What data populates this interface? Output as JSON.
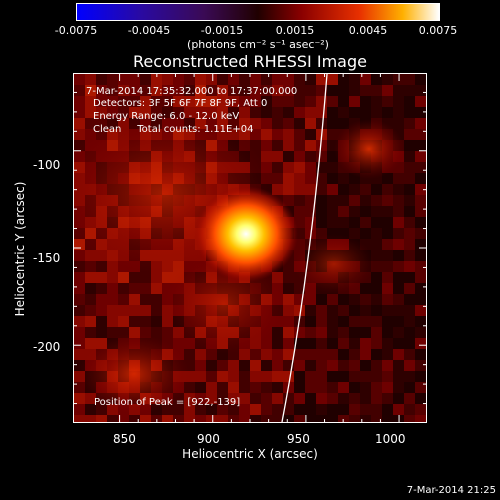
{
  "title": "Reconstructed RHESSI Image",
  "colorbar": {
    "ticks": [
      "-0.0075",
      "-0.0045",
      "-0.0015",
      "0.0015",
      "0.0045",
      "0.0075"
    ],
    "units": "(photons cm⁻² s⁻¹ asec⁻²)",
    "range": [
      -0.0075,
      0.0075
    ]
  },
  "annotations": {
    "time_range": "7-Mar-2014 17:35:32.000 to 17:37:00.000",
    "detectors": "Detectors: 3F 5F 6F 7F 8F 9F, Att 0",
    "energy_range": "Energy Range: 6.0 - 12.0 keV",
    "method_counts": "Clean     Total counts: 1.11E+04",
    "peak_position": "Position of Peak = [922,-139]"
  },
  "footer": "7-Mar-2014 21:25",
  "chart_data": {
    "type": "heatmap",
    "xlabel": "Heliocentric X (arcsec)",
    "ylabel": "Heliocentric Y (arcsec)",
    "xlim": [
      825,
      1015
    ],
    "ylim": [
      -240,
      -60
    ],
    "x_ticks": [
      "850",
      "900",
      "950",
      "1000"
    ],
    "y_ticks": [
      "-100",
      "-150",
      "-200"
    ],
    "peak": [
      922,
      -139
    ]
  }
}
